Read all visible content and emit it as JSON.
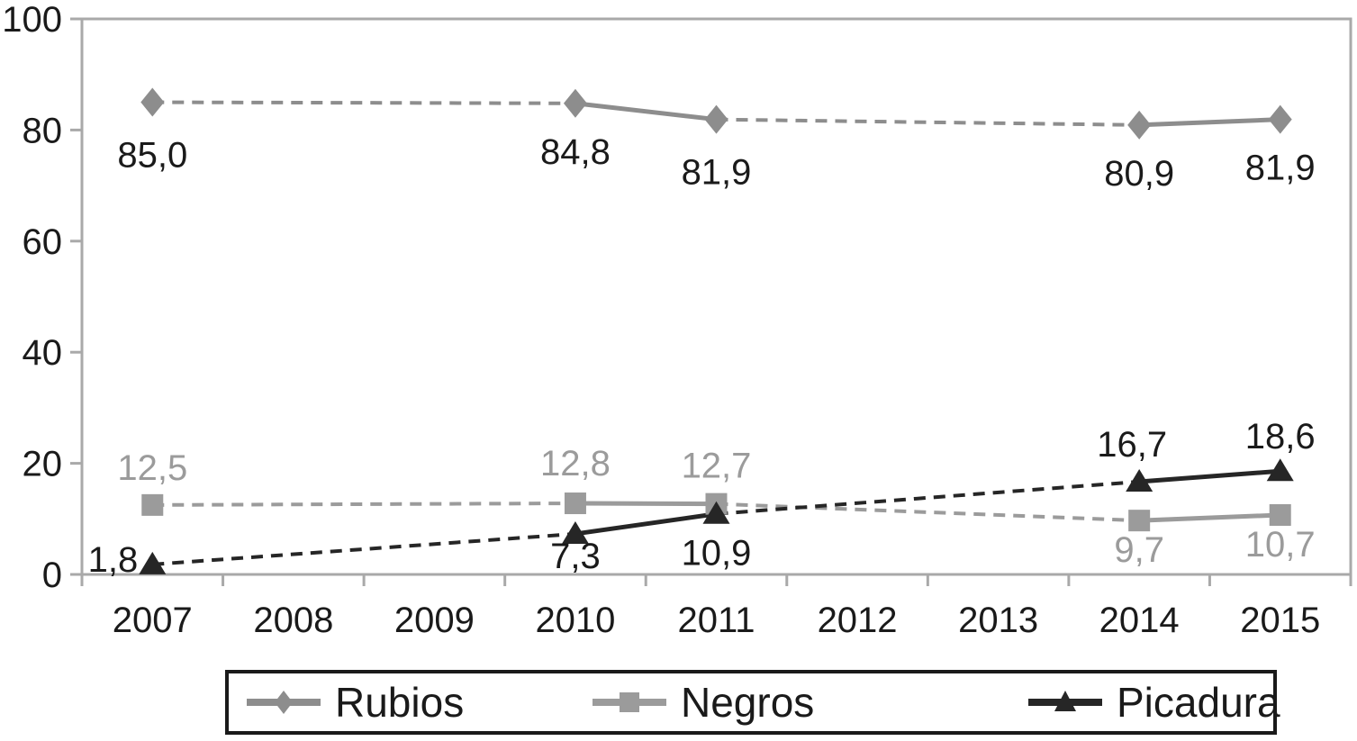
{
  "chart_data": {
    "type": "line",
    "title": "",
    "xlabel": "",
    "ylabel": "",
    "x_categories": [
      "2007",
      "2008",
      "2009",
      "2010",
      "2011",
      "2012",
      "2013",
      "2014",
      "2015"
    ],
    "y_axis": {
      "min": 0,
      "max": 100,
      "ticks": [
        0,
        20,
        40,
        60,
        80,
        100
      ]
    },
    "grid": false,
    "legend_position": "bottom",
    "line_style_rule": "solid between consecutive years, dashed across gap years (2008-2009, 2012-2013 have no data)",
    "series": [
      {
        "name": "Rubios",
        "marker": "diamond",
        "color": "#8d8d8d",
        "label_color": "#1a1a1a",
        "points": [
          {
            "x": "2007",
            "value": 85.0,
            "label": "85,0",
            "label_pos": "below",
            "label_offset": [
              0,
              72
            ]
          },
          {
            "x": "2010",
            "value": 84.8,
            "label": "84,8",
            "label_pos": "below",
            "label_offset": [
              0,
              67
            ]
          },
          {
            "x": "2011",
            "value": 81.9,
            "label": "81,9",
            "label_pos": "below",
            "label_offset": [
              0,
              72
            ]
          },
          {
            "x": "2014",
            "value": 80.9,
            "label": "80,9",
            "label_pos": "below",
            "label_offset": [
              0,
              67
            ]
          },
          {
            "x": "2015",
            "value": 81.9,
            "label": "81,9",
            "label_pos": "below",
            "label_offset": [
              0,
              67
            ]
          }
        ]
      },
      {
        "name": "Negros",
        "marker": "square",
        "color": "#9b9b9b",
        "label_color": "#9b9b9b",
        "points": [
          {
            "x": "2007",
            "value": 12.5,
            "label": "12,5",
            "label_pos": "above",
            "label_offset": [
              0,
              -28
            ]
          },
          {
            "x": "2010",
            "value": 12.8,
            "label": "12,8",
            "label_pos": "above",
            "label_offset": [
              0,
              -31
            ]
          },
          {
            "x": "2011",
            "value": 12.7,
            "label": "12,7",
            "label_pos": "above",
            "label_offset": [
              0,
              -29
            ]
          },
          {
            "x": "2014",
            "value": 9.7,
            "label": "9,7",
            "label_pos": "below",
            "label_offset": [
              0,
              46
            ]
          },
          {
            "x": "2015",
            "value": 10.7,
            "label": "10,7",
            "label_pos": "below",
            "label_offset": [
              0,
              46
            ]
          }
        ]
      },
      {
        "name": "Picadura",
        "marker": "triangle",
        "color": "#262626",
        "label_color": "#1a1a1a",
        "points": [
          {
            "x": "2007",
            "value": 1.8,
            "label": "1,8",
            "label_pos": "left",
            "label_offset": [
              -16,
              8
            ]
          },
          {
            "x": "2010",
            "value": 7.3,
            "label": "7,3",
            "label_pos": "below",
            "label_offset": [
              0,
              38
            ]
          },
          {
            "x": "2011",
            "value": 10.9,
            "label": "10,9",
            "label_pos": "below",
            "label_offset": [
              0,
              57
            ]
          },
          {
            "x": "2014",
            "value": 16.7,
            "label": "16,7",
            "label_pos": "above",
            "label_offset": [
              -8,
              -28
            ]
          },
          {
            "x": "2015",
            "value": 18.6,
            "label": "18,6",
            "label_pos": "above",
            "label_offset": [
              0,
              -25
            ]
          }
        ]
      }
    ]
  },
  "colors": {
    "axis": "#a9a9a9",
    "text": "#1a1a1a",
    "background": "#ffffff",
    "legend_border": "#1a1a1a"
  }
}
